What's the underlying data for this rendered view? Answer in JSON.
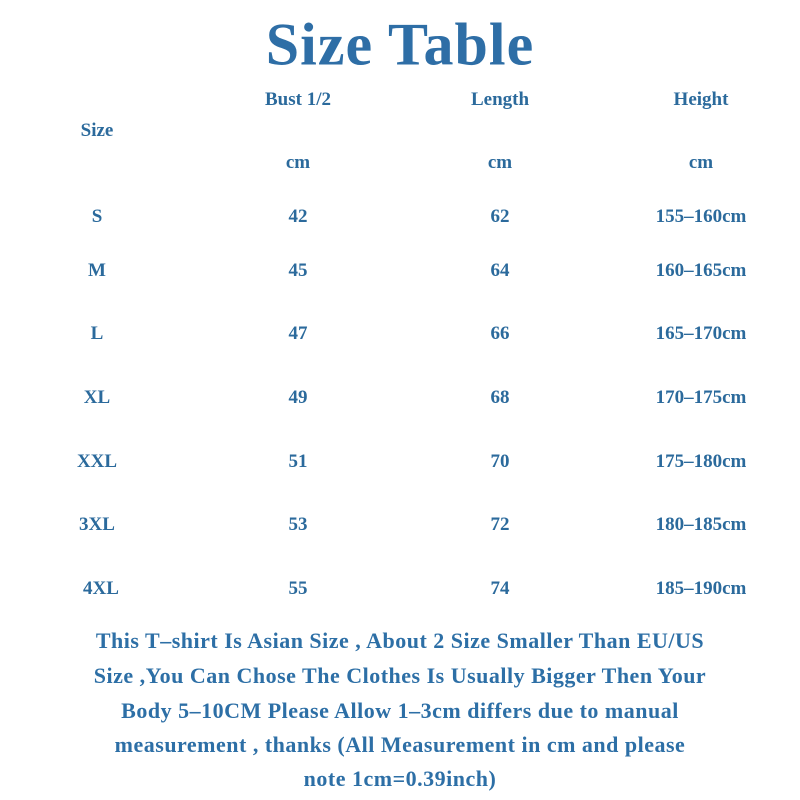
{
  "title": "Size Table",
  "table": {
    "header": [
      "Size",
      "Bust 1/2",
      "Length",
      "Height"
    ],
    "units": [
      "cm",
      "cm",
      "cm"
    ],
    "rows": [
      [
        "S",
        42,
        62,
        "155–160cm"
      ],
      [
        "M",
        45,
        64,
        "160–165cm"
      ],
      [
        "L",
        47,
        66,
        "165–170cm"
      ],
      [
        "XL",
        49,
        68,
        "170–175cm"
      ],
      [
        "XXL",
        51,
        70,
        "175–180cm"
      ],
      [
        "3XL",
        53,
        72,
        "180–185cm"
      ],
      [
        "4XL",
        55,
        74,
        "185–190cm"
      ]
    ]
  },
  "note": [
    "This T–shirt Is Asian Size , About 2 Size Smaller Than EU/US",
    "Size ,You Can Chose The Clothes Is Usually Bigger Then Your",
    "Body 5–10CM Please Allow 1–3cm differs due to manual",
    "measurement , thanks (All Measurement in cm and please",
    "note 1cm=0.39inch)"
  ]
}
